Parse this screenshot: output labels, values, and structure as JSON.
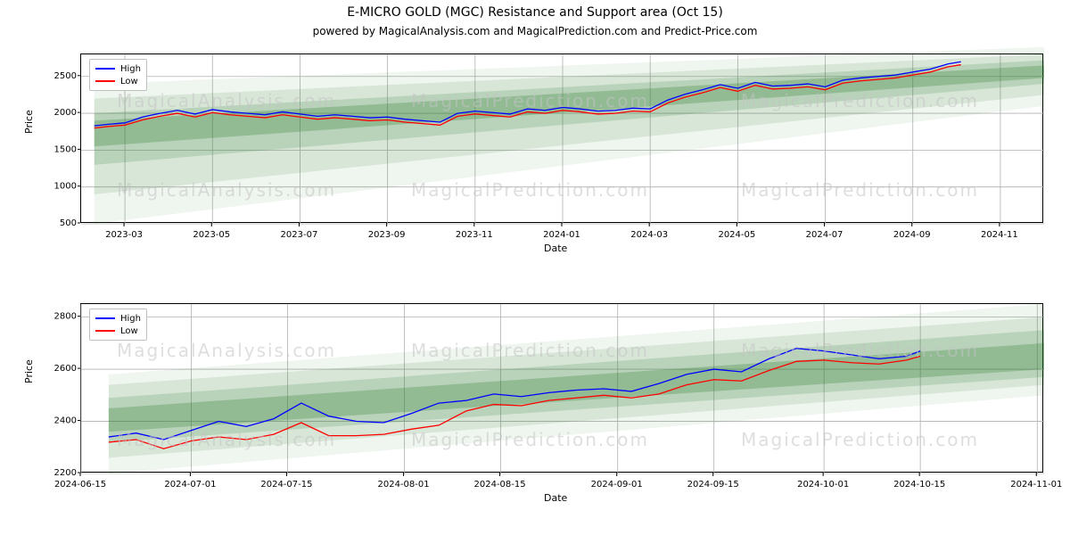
{
  "titles": {
    "main": "E-MICRO GOLD (MGC) Resistance and Support area (Oct 15)",
    "sub": "powered by MagicalAnalysis.com and MagicalPrediction.com and Predict-Price.com",
    "main_fontsize": 14,
    "sub_fontsize": 12
  },
  "watermarks": {
    "text1": "MagicalAnalysis.com",
    "text2": "MagicalPrediction.com",
    "color": "#c4c4c4"
  },
  "legend": {
    "series": [
      {
        "label": "High",
        "color": "#0000ff"
      },
      {
        "label": "Low",
        "color": "#ff0000"
      }
    ]
  },
  "chart_top": {
    "type": "line+area",
    "xlabel": "Date",
    "ylabel": "Price",
    "label_fontsize": 11,
    "tick_fontsize": 10,
    "grid_color": "#b0b0b0",
    "border_color": "#000000",
    "background_color": "#ffffff",
    "line_width": 1.3,
    "x_domain": [
      0,
      22
    ],
    "y_domain": [
      500,
      2800
    ],
    "x_ticks": [
      {
        "pos": 1,
        "label": "2023-03"
      },
      {
        "pos": 3,
        "label": "2023-05"
      },
      {
        "pos": 5,
        "label": "2023-07"
      },
      {
        "pos": 7,
        "label": "2023-09"
      },
      {
        "pos": 9,
        "label": "2023-11"
      },
      {
        "pos": 11,
        "label": "2024-01"
      },
      {
        "pos": 13,
        "label": "2024-03"
      },
      {
        "pos": 15,
        "label": "2024-05"
      },
      {
        "pos": 17,
        "label": "2024-07"
      },
      {
        "pos": 19,
        "label": "2024-09"
      },
      {
        "pos": 21,
        "label": "2024-11"
      }
    ],
    "y_ticks": [
      500,
      1000,
      1500,
      2000,
      2500
    ],
    "bands": [
      {
        "color": "#2e7d32",
        "opacity": 0.08,
        "y0_start": 500,
        "y0_end": 2100,
        "y1_start": 2400,
        "y1_end": 2900,
        "x_start": 0.3,
        "x_end": 22
      },
      {
        "color": "#2e7d32",
        "opacity": 0.12,
        "y0_start": 900,
        "y0_end": 2250,
        "y1_start": 2200,
        "y1_end": 2800,
        "x_start": 0.3,
        "x_end": 22
      },
      {
        "color": "#2e7d32",
        "opacity": 0.18,
        "y0_start": 1300,
        "y0_end": 2400,
        "y1_start": 2000,
        "y1_end": 2720,
        "x_start": 0.3,
        "x_end": 22
      },
      {
        "color": "#2e7d32",
        "opacity": 0.28,
        "y0_start": 1550,
        "y0_end": 2480,
        "y1_start": 1900,
        "y1_end": 2650,
        "x_start": 0.3,
        "x_end": 22
      }
    ],
    "series": {
      "high_color": "#0000ff",
      "low_color": "#ff0000",
      "x": [
        0.3,
        0.6,
        1,
        1.4,
        1.8,
        2.2,
        2.6,
        3,
        3.4,
        3.8,
        4.2,
        4.6,
        5,
        5.4,
        5.8,
        6.2,
        6.6,
        7,
        7.4,
        7.8,
        8.2,
        8.6,
        9,
        9.4,
        9.8,
        10.2,
        10.6,
        11,
        11.4,
        11.8,
        12.2,
        12.6,
        13,
        13.4,
        13.8,
        14.2,
        14.6,
        15,
        15.4,
        15.8,
        16.2,
        16.6,
        17,
        17.4,
        17.8,
        18.2,
        18.6,
        19,
        19.4,
        19.8,
        20.1
      ],
      "high": [
        1830,
        1850,
        1870,
        1950,
        2000,
        2040,
        1990,
        2050,
        2020,
        2000,
        1980,
        2020,
        1990,
        1960,
        1980,
        1960,
        1940,
        1950,
        1920,
        1900,
        1880,
        2000,
        2030,
        2010,
        1990,
        2060,
        2040,
        2080,
        2060,
        2030,
        2040,
        2070,
        2060,
        2180,
        2260,
        2320,
        2390,
        2340,
        2420,
        2370,
        2380,
        2400,
        2360,
        2450,
        2480,
        2500,
        2520,
        2560,
        2600,
        2670,
        2700
      ],
      "low": [
        1800,
        1820,
        1840,
        1910,
        1960,
        2000,
        1950,
        2010,
        1980,
        1960,
        1940,
        1980,
        1950,
        1920,
        1940,
        1920,
        1900,
        1910,
        1880,
        1860,
        1840,
        1960,
        1990,
        1970,
        1950,
        2020,
        2000,
        2040,
        2020,
        1990,
        2000,
        2030,
        2020,
        2140,
        2220,
        2280,
        2350,
        2300,
        2380,
        2330,
        2340,
        2360,
        2320,
        2410,
        2440,
        2460,
        2480,
        2520,
        2560,
        2630,
        2660
      ]
    }
  },
  "chart_bottom": {
    "type": "line+area",
    "xlabel": "Date",
    "ylabel": "Price",
    "label_fontsize": 11,
    "tick_fontsize": 10,
    "grid_color": "#b0b0b0",
    "border_color": "#000000",
    "background_color": "#ffffff",
    "line_width": 1.3,
    "x_domain": [
      0,
      140
    ],
    "y_domain": [
      2200,
      2850
    ],
    "x_ticks": [
      {
        "pos": 0,
        "label": "2024-06-15"
      },
      {
        "pos": 16,
        "label": "2024-07-01"
      },
      {
        "pos": 30,
        "label": "2024-07-15"
      },
      {
        "pos": 47,
        "label": "2024-08-01"
      },
      {
        "pos": 61,
        "label": "2024-08-15"
      },
      {
        "pos": 78,
        "label": "2024-09-01"
      },
      {
        "pos": 92,
        "label": "2024-09-15"
      },
      {
        "pos": 108,
        "label": "2024-10-01"
      },
      {
        "pos": 122,
        "label": "2024-10-15"
      },
      {
        "pos": 139,
        "label": "2024-11-01"
      }
    ],
    "y_ticks": [
      2200,
      2400,
      2600,
      2800
    ],
    "bands": [
      {
        "color": "#2e7d32",
        "opacity": 0.08,
        "y0_start": 2200,
        "y0_end": 2500,
        "y1_start": 2580,
        "y1_end": 2850,
        "x_start": 4,
        "x_end": 140
      },
      {
        "color": "#2e7d32",
        "opacity": 0.12,
        "y0_start": 2260,
        "y0_end": 2540,
        "y1_start": 2540,
        "y1_end": 2800,
        "x_start": 4,
        "x_end": 140
      },
      {
        "color": "#2e7d32",
        "opacity": 0.18,
        "y0_start": 2320,
        "y0_end": 2570,
        "y1_start": 2490,
        "y1_end": 2750,
        "x_start": 4,
        "x_end": 140
      },
      {
        "color": "#2e7d32",
        "opacity": 0.28,
        "y0_start": 2360,
        "y0_end": 2600,
        "y1_start": 2450,
        "y1_end": 2700,
        "x_start": 4,
        "x_end": 140
      }
    ],
    "series": {
      "high_color": "#0000ff",
      "low_color": "#ff0000",
      "x": [
        4,
        8,
        12,
        16,
        20,
        24,
        28,
        32,
        36,
        40,
        44,
        48,
        52,
        56,
        60,
        64,
        68,
        72,
        76,
        80,
        84,
        88,
        92,
        96,
        100,
        104,
        108,
        112,
        116,
        120,
        122
      ],
      "high": [
        2340,
        2355,
        2330,
        2365,
        2400,
        2380,
        2410,
        2470,
        2420,
        2400,
        2395,
        2430,
        2470,
        2480,
        2505,
        2495,
        2510,
        2520,
        2525,
        2515,
        2545,
        2580,
        2600,
        2590,
        2640,
        2680,
        2670,
        2655,
        2640,
        2650,
        2670
      ],
      "low": [
        2320,
        2330,
        2295,
        2325,
        2340,
        2330,
        2350,
        2395,
        2345,
        2345,
        2350,
        2370,
        2385,
        2440,
        2465,
        2460,
        2480,
        2490,
        2500,
        2490,
        2505,
        2540,
        2560,
        2555,
        2595,
        2630,
        2635,
        2625,
        2620,
        2635,
        2650
      ]
    }
  }
}
